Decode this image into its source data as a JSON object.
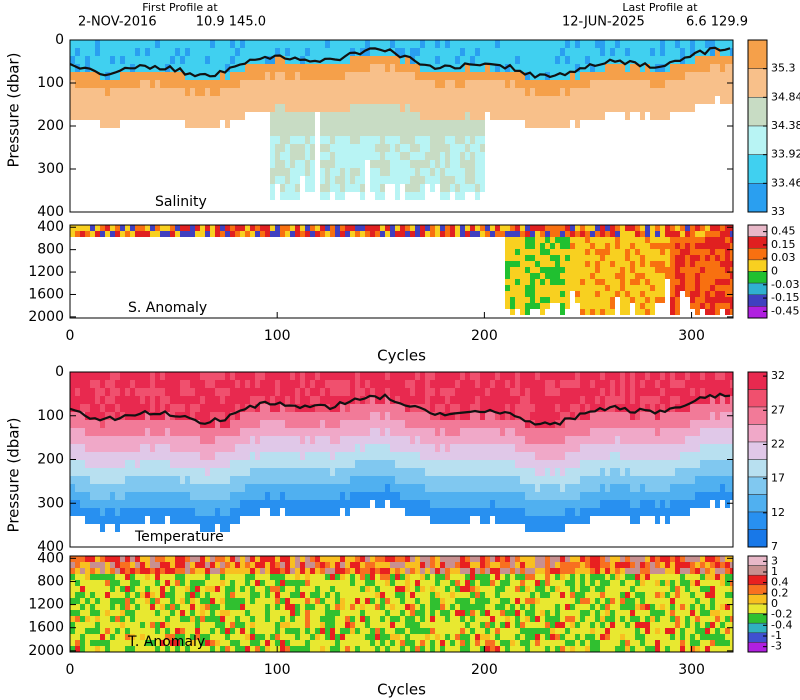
{
  "header": {
    "first_label": "First Profile at",
    "first_date": "2-NOV-2016",
    "first_pos": "10.9 145.0",
    "last_label": "Last Profile at",
    "last_date": "12-JUN-2025",
    "last_pos": "6.6 129.9"
  },
  "chart_data": [
    {
      "type": "contour",
      "label": "Salinity",
      "ylabel": "Pressure (dbar)",
      "ylim": [
        400,
        0
      ],
      "yticks": [
        0,
        100,
        200,
        300,
        400
      ],
      "colorbar": {
        "ticks": [
          35.3,
          34.84,
          34.38,
          33.92,
          33.46,
          33
        ],
        "lim": [
          33,
          35.76
        ],
        "colors": [
          "#f5a04a",
          "#f8c08a",
          "#c8dcc4",
          "#b8f4f4",
          "#40d0f0",
          "#2a9ff0"
        ]
      }
    },
    {
      "type": "anomaly",
      "label": "S. Anomaly",
      "xlabel": "Cycles",
      "xlim": [
        0,
        320
      ],
      "xticks": [
        0,
        100,
        200,
        300
      ],
      "ylim": [
        2020,
        360
      ],
      "yticks": [
        400,
        800,
        1200,
        1600,
        2000
      ],
      "colorbar": {
        "ticks": [
          0.45,
          0.15,
          0.03,
          0,
          -0.03,
          -0.15,
          -0.45
        ],
        "scale": "index",
        "colors": [
          "#e8b8c8",
          "#e02020",
          "#f87010",
          "#f8d020",
          "#20c030",
          "#30b0d0",
          "#4040c0",
          "#b020e0"
        ]
      }
    },
    {
      "type": "contour",
      "label": "Temperature",
      "ylabel": "Pressure (dbar)",
      "ylim": [
        400,
        0
      ],
      "yticks": [
        0,
        100,
        200,
        300,
        400
      ],
      "colorbar": {
        "ticks": [
          32,
          27,
          22,
          17,
          12,
          7
        ],
        "lim": [
          7,
          32.6
        ],
        "colors": [
          "#e8294f",
          "#f0506e",
          "#f27a98",
          "#f0a8c8",
          "#e0c8e8",
          "#b8e0f0",
          "#80c8f0",
          "#50b0f0",
          "#2890f0",
          "#1878e8"
        ]
      }
    },
    {
      "type": "anomaly",
      "label": "T. Anomaly",
      "xlabel": "Cycles",
      "xlim": [
        0,
        320
      ],
      "xticks": [
        0,
        100,
        200,
        300
      ],
      "ylim": [
        2020,
        360
      ],
      "yticks": [
        400,
        800,
        1200,
        1600,
        2000
      ],
      "colorbar": {
        "ticks": [
          3,
          1,
          0.4,
          0.2,
          0,
          -0.2,
          -0.4,
          -1,
          -3
        ],
        "scale": "index",
        "colors": [
          "#e8b8c8",
          "#c89090",
          "#e82020",
          "#f87020",
          "#f8c020",
          "#e8e830",
          "#30c030",
          "#30b0c0",
          "#4050d0",
          "#b020e0"
        ]
      }
    }
  ]
}
